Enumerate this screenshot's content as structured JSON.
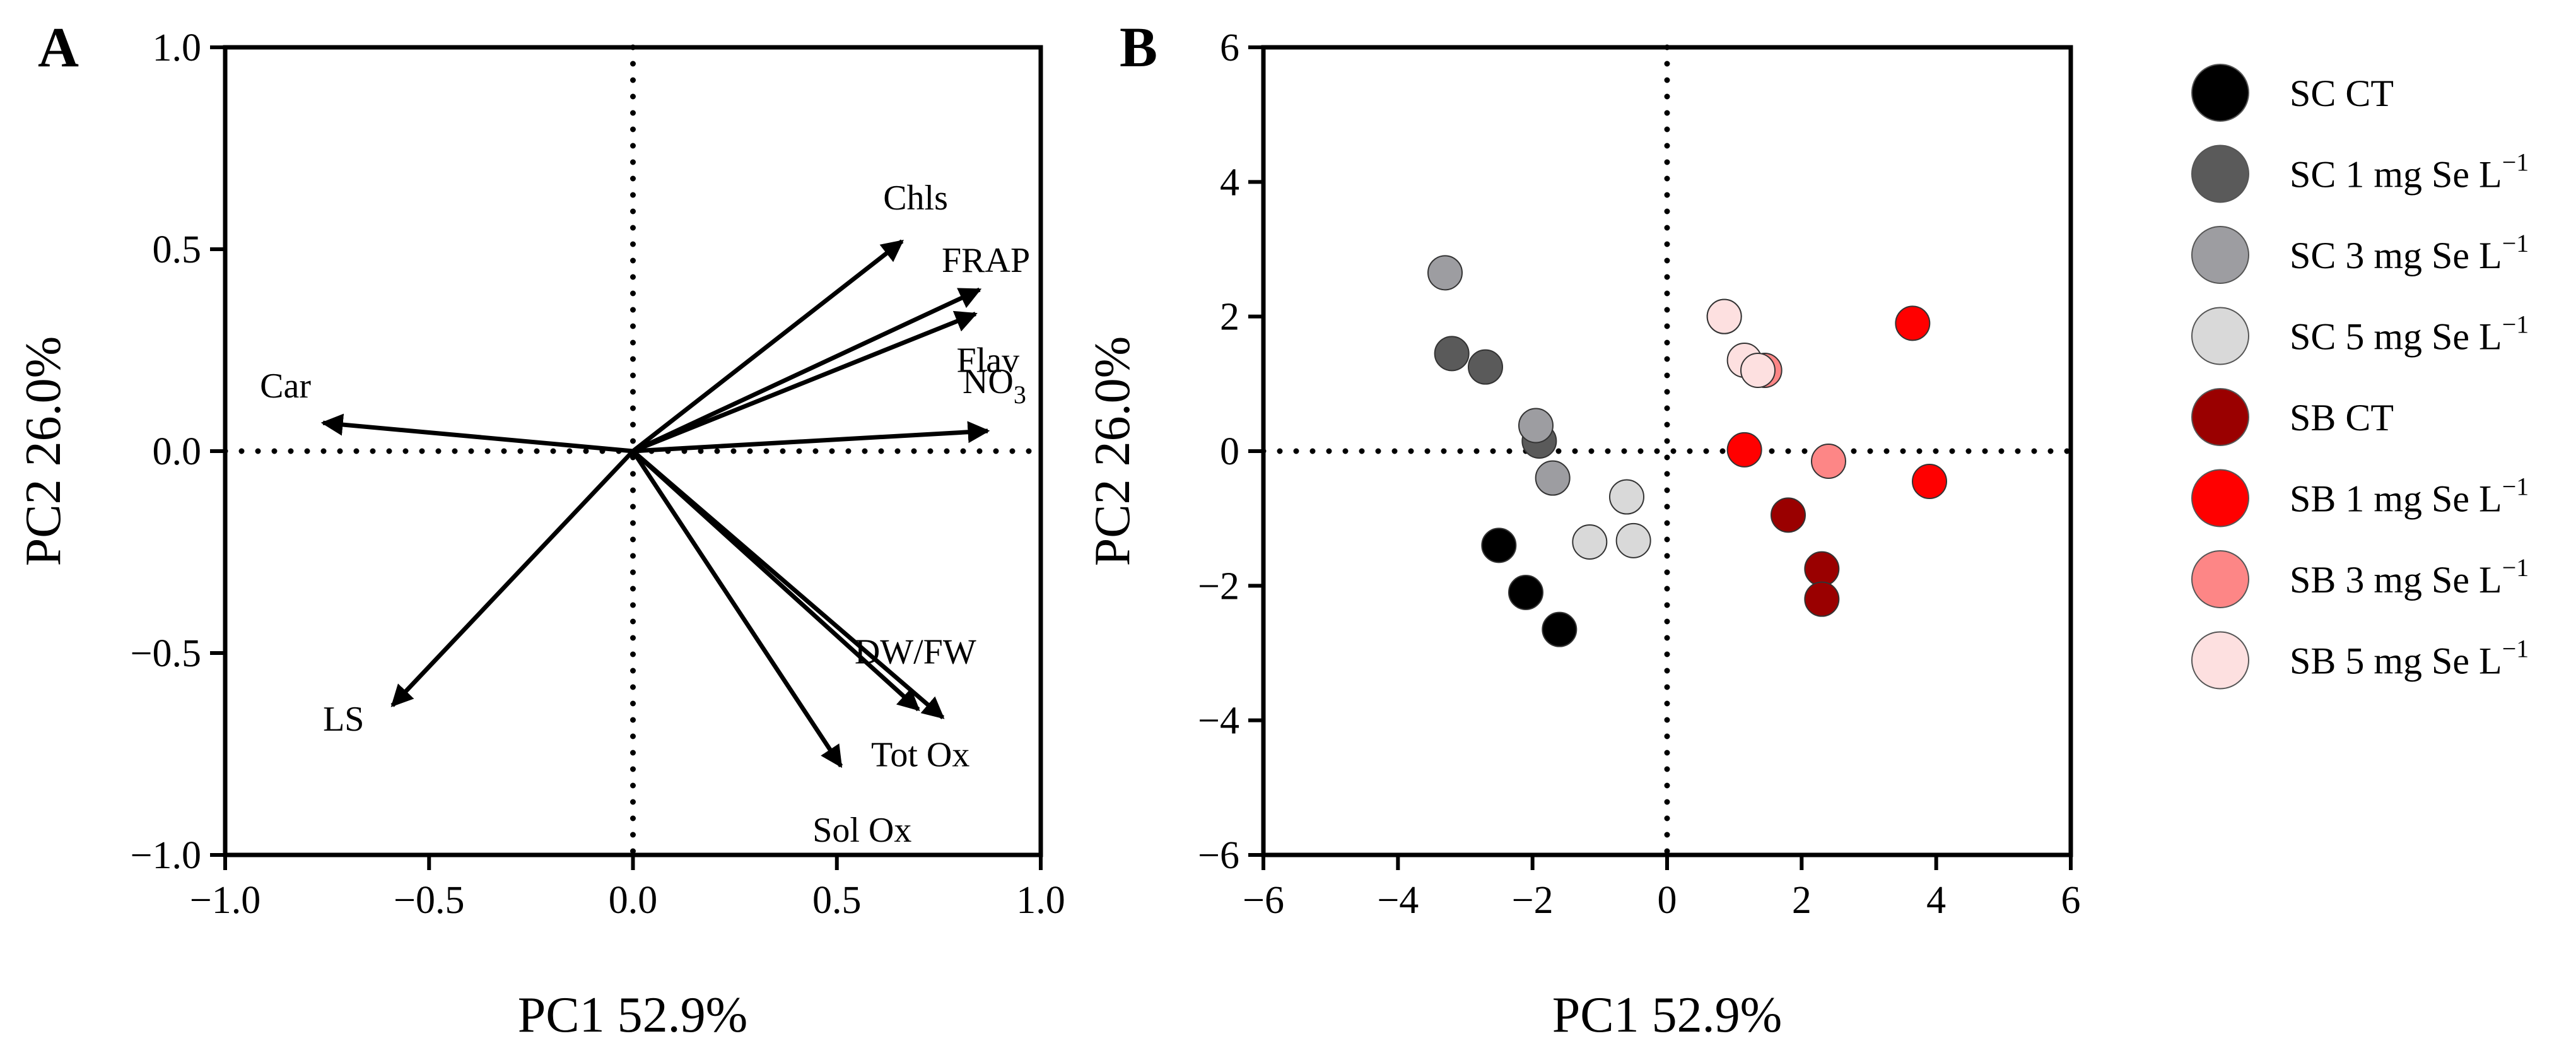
{
  "chart_data": [
    {
      "panel": "A",
      "type": "biplot",
      "xlabel": "PC1 52.9%",
      "ylabel": "PC2 26.0%",
      "xlim": [
        -1.0,
        1.0
      ],
      "ylim": [
        -1.0,
        1.0
      ],
      "xticks": [
        -1.0,
        -0.5,
        0.0,
        0.5,
        1.0
      ],
      "xtick_labels": [
        "−1.0",
        "−0.5",
        "0.0",
        "0.5",
        "1.0"
      ],
      "yticks": [
        -1.0,
        -0.5,
        0.0,
        0.5,
        1.0
      ],
      "ytick_labels": [
        "−1.0",
        "−0.5",
        "0.0",
        "0.5",
        "1.0"
      ],
      "reference_lines": {
        "x": 0,
        "y": 0,
        "style": "dotted"
      },
      "loadings": [
        {
          "name": "Chls",
          "x": 0.66,
          "y": 0.52
        },
        {
          "name": "FRAP",
          "x": 0.85,
          "y": 0.4
        },
        {
          "name": "Flav",
          "x": 0.84,
          "y": 0.34
        },
        {
          "name": "NO3",
          "x": 0.87,
          "y": 0.05
        },
        {
          "name": "Car",
          "x": -0.76,
          "y": 0.07
        },
        {
          "name": "LS",
          "x": -0.59,
          "y": -0.63
        },
        {
          "name": "DW/FW",
          "x": 0.76,
          "y": -0.66
        },
        {
          "name": "Tot Ox",
          "x": 0.7,
          "y": -0.64
        },
        {
          "name": "Sol Ox",
          "x": 0.51,
          "y": -0.78
        }
      ]
    },
    {
      "panel": "B",
      "type": "scatter",
      "xlabel": "PC1 52.9%",
      "ylabel": "PC2 26.0%",
      "xlim": [
        -6,
        6
      ],
      "ylim": [
        -6,
        6
      ],
      "xticks": [
        -6,
        -4,
        -2,
        0,
        2,
        4,
        6
      ],
      "xtick_labels": [
        "−6",
        "−4",
        "−2",
        "0",
        "2",
        "4",
        "6"
      ],
      "yticks": [
        -6,
        -4,
        -2,
        0,
        2,
        4,
        6
      ],
      "ytick_labels": [
        "−6",
        "−4",
        "−2",
        "0",
        "2",
        "4",
        "6"
      ],
      "reference_lines": {
        "x": 0,
        "y": 0,
        "style": "dotted"
      },
      "legend_position": "right",
      "series": [
        {
          "name": "SC CT",
          "color": "#000000",
          "points": [
            [
              -2.5,
              -1.4
            ],
            [
              -2.1,
              -2.1
            ],
            [
              -1.6,
              -2.65
            ]
          ]
        },
        {
          "name": "SC 1 mg Se L−1",
          "color": "#5a5a5a",
          "points": [
            [
              -3.2,
              1.45
            ],
            [
              -2.7,
              1.25
            ],
            [
              -1.9,
              0.15
            ]
          ]
        },
        {
          "name": "SC 3 mg Se L−1",
          "color": "#9d9da1",
          "points": [
            [
              -3.3,
              2.65
            ],
            [
              -1.95,
              0.38
            ],
            [
              -1.7,
              -0.4
            ]
          ]
        },
        {
          "name": "SC 5 mg Se L−1",
          "color": "#d9d9d9",
          "points": [
            [
              -1.15,
              -1.35
            ],
            [
              -0.6,
              -0.68
            ],
            [
              -0.5,
              -1.33
            ]
          ]
        },
        {
          "name": "SB CT",
          "color": "#9a0000",
          "points": [
            [
              1.8,
              -0.95
            ],
            [
              2.3,
              -1.75
            ],
            [
              2.3,
              -2.2
            ]
          ]
        },
        {
          "name": "SB 1 mg Se L−1",
          "color": "#ff0000",
          "points": [
            [
              1.15,
              0.02
            ],
            [
              3.65,
              1.9
            ],
            [
              3.9,
              -0.45
            ]
          ]
        },
        {
          "name": "SB 3 mg Se L−1",
          "color": "#fd8686",
          "points": [
            [
              0.85,
              2.0
            ],
            [
              1.45,
              1.2
            ],
            [
              2.4,
              -0.15
            ]
          ]
        },
        {
          "name": "SB 5 mg Se L−1",
          "color": "#fde0e0",
          "points": [
            [
              0.85,
              2.0
            ],
            [
              1.15,
              1.35
            ],
            [
              1.35,
              1.2
            ]
          ]
        }
      ]
    }
  ],
  "legend": {
    "items": [
      {
        "base": "SC CT",
        "sup": "",
        "color": "#000000"
      },
      {
        "base": "SC 1 mg Se L",
        "sup": "−1",
        "color": "#5a5a5a"
      },
      {
        "base": "SC 3  mg Se L",
        "sup": "−1",
        "color": "#9d9da1"
      },
      {
        "base": "SC 5  mg Se L",
        "sup": "−1",
        "color": "#d9d9d9"
      },
      {
        "base": "SB CT",
        "sup": "",
        "color": "#9a0000"
      },
      {
        "base": "SB 1  mg Se L",
        "sup": "−1",
        "color": "#ff0000"
      },
      {
        "base": "SB 3  mg Se L",
        "sup": "−1",
        "color": "#fd8686"
      },
      {
        "base": "SB 5  mg Se L",
        "sup": "−1",
        "color": "#fde0e0"
      }
    ]
  }
}
